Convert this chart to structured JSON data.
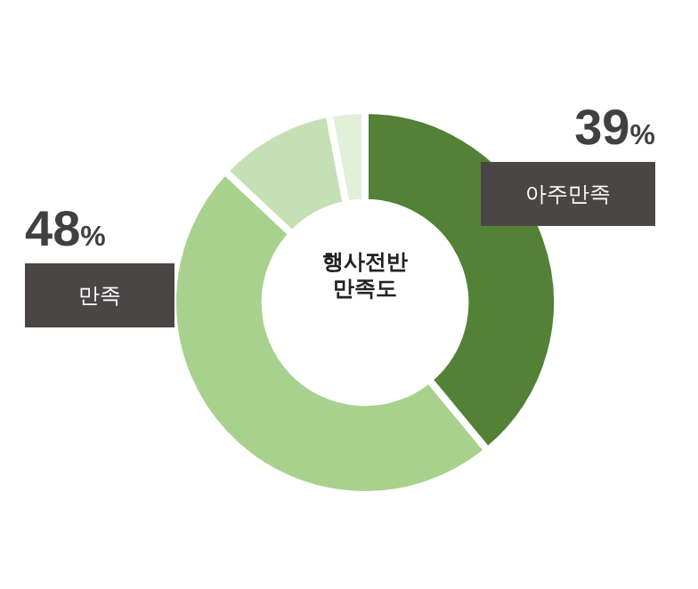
{
  "chart_data": {
    "type": "donut",
    "title": "행사전반\n만족도",
    "categories": [
      "아주만족",
      "만족",
      null,
      null
    ],
    "values": [
      39,
      48,
      10,
      3
    ],
    "colors": [
      "#538135",
      "#a9d18e",
      "#c5e0b4",
      "#e2efd9"
    ],
    "value_labels": [
      "39%",
      "48%",
      null,
      null
    ],
    "legend": false
  }
}
